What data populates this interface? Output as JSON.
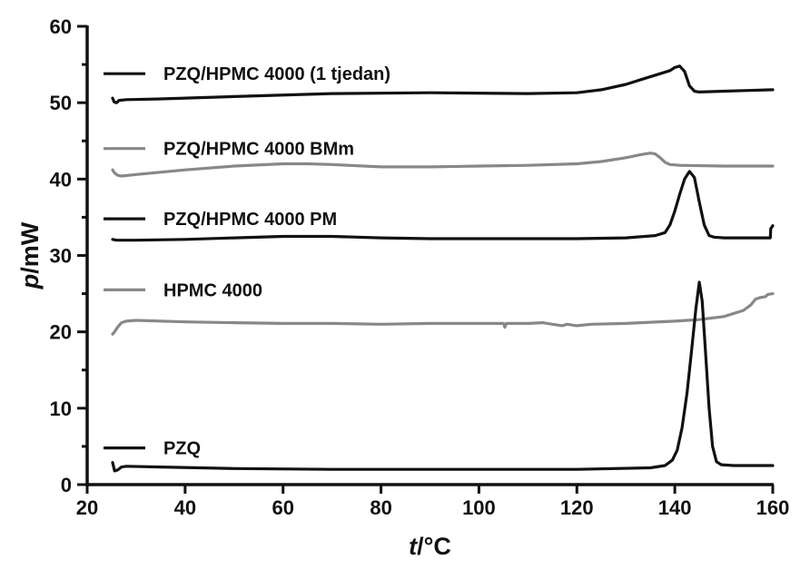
{
  "chart_data": {
    "type": "line",
    "title": "",
    "xlabel": {
      "symbol": "t",
      "unit": "/°C"
    },
    "ylabel": {
      "symbol": "p",
      "unit": "/mW"
    },
    "xlim": [
      20,
      160
    ],
    "ylim": [
      0,
      60
    ],
    "xticks": [
      20,
      40,
      60,
      80,
      100,
      120,
      140,
      160
    ],
    "yticks": [
      0,
      10,
      20,
      30,
      40,
      50,
      60
    ],
    "grid": false,
    "legend": "inline labels, left side",
    "series": [
      {
        "name": "PZQ/HPMC 4000 (1 tjedan)",
        "color": "#111111",
        "legend_y": 53.8,
        "points": [
          [
            25.2,
            50.6
          ],
          [
            25.5,
            50.1
          ],
          [
            26.0,
            50.0
          ],
          [
            26.5,
            50.3
          ],
          [
            28,
            50.4
          ],
          [
            35,
            50.5
          ],
          [
            50,
            50.8
          ],
          [
            70,
            51.2
          ],
          [
            90,
            51.3
          ],
          [
            110,
            51.2
          ],
          [
            120,
            51.3
          ],
          [
            125,
            51.7
          ],
          [
            130,
            52.4
          ],
          [
            134,
            53.2
          ],
          [
            137,
            53.8
          ],
          [
            139,
            54.2
          ],
          [
            140,
            54.6
          ],
          [
            141,
            54.8
          ],
          [
            142,
            54.1
          ],
          [
            143,
            52.2
          ],
          [
            144,
            51.5
          ],
          [
            145,
            51.4
          ],
          [
            150,
            51.5
          ],
          [
            155,
            51.6
          ],
          [
            160,
            51.7
          ]
        ]
      },
      {
        "name": "PZQ/HPMC 4000 BMm",
        "color": "#888888",
        "legend_y": 44.0,
        "points": [
          [
            25.2,
            41.2
          ],
          [
            25.6,
            40.8
          ],
          [
            26.2,
            40.5
          ],
          [
            27,
            40.4
          ],
          [
            30,
            40.6
          ],
          [
            40,
            41.2
          ],
          [
            50,
            41.7
          ],
          [
            60,
            42.0
          ],
          [
            65,
            42.0
          ],
          [
            70,
            41.9
          ],
          [
            80,
            41.6
          ],
          [
            90,
            41.6
          ],
          [
            100,
            41.7
          ],
          [
            110,
            41.8
          ],
          [
            120,
            42.0
          ],
          [
            125,
            42.3
          ],
          [
            130,
            42.8
          ],
          [
            133,
            43.2
          ],
          [
            135,
            43.4
          ],
          [
            136,
            43.3
          ],
          [
            137,
            42.8
          ],
          [
            138,
            42.2
          ],
          [
            139,
            41.9
          ],
          [
            141,
            41.8
          ],
          [
            150,
            41.7
          ],
          [
            160,
            41.7
          ]
        ]
      },
      {
        "name": "PZQ/HPMC 4000 PM",
        "color": "#111111",
        "legend_y": 34.8,
        "points": [
          [
            25.2,
            32.1
          ],
          [
            26,
            32.0
          ],
          [
            30,
            32.0
          ],
          [
            40,
            32.1
          ],
          [
            50,
            32.3
          ],
          [
            60,
            32.5
          ],
          [
            70,
            32.5
          ],
          [
            80,
            32.3
          ],
          [
            90,
            32.2
          ],
          [
            100,
            32.2
          ],
          [
            110,
            32.2
          ],
          [
            120,
            32.2
          ],
          [
            130,
            32.3
          ],
          [
            136,
            32.6
          ],
          [
            138,
            33.0
          ],
          [
            139,
            34.0
          ],
          [
            140,
            35.8
          ],
          [
            141,
            38.0
          ],
          [
            142,
            40.0
          ],
          [
            143,
            41.0
          ],
          [
            144,
            40.2
          ],
          [
            145,
            37.0
          ],
          [
            146,
            34.0
          ],
          [
            147,
            32.6
          ],
          [
            148,
            32.4
          ],
          [
            150,
            32.3
          ],
          [
            159.5,
            32.3
          ],
          [
            159.6,
            33.5
          ],
          [
            160,
            33.9
          ]
        ]
      },
      {
        "name": "HPMC 4000",
        "color": "#888888",
        "legend_y": 25.5,
        "points": [
          [
            25.2,
            19.7
          ],
          [
            25.6,
            20.0
          ],
          [
            26.2,
            20.6
          ],
          [
            27,
            21.2
          ],
          [
            28,
            21.4
          ],
          [
            30,
            21.5
          ],
          [
            40,
            21.3
          ],
          [
            50,
            21.2
          ],
          [
            60,
            21.1
          ],
          [
            70,
            21.1
          ],
          [
            80,
            21.0
          ],
          [
            90,
            21.1
          ],
          [
            100,
            21.1
          ],
          [
            105,
            21.1
          ],
          [
            105.3,
            20.6
          ],
          [
            105.6,
            21.1
          ],
          [
            110,
            21.1
          ],
          [
            113,
            21.2
          ],
          [
            115,
            21.0
          ],
          [
            117,
            20.8
          ],
          [
            118,
            21.0
          ],
          [
            120,
            20.8
          ],
          [
            123,
            21.0
          ],
          [
            130,
            21.1
          ],
          [
            140,
            21.4
          ],
          [
            145,
            21.6
          ],
          [
            150,
            22.0
          ],
          [
            154,
            22.8
          ],
          [
            155.5,
            23.5
          ],
          [
            156.5,
            24.3
          ],
          [
            157.5,
            24.5
          ],
          [
            158.5,
            24.6
          ],
          [
            159,
            24.9
          ],
          [
            160,
            25.0
          ]
        ]
      },
      {
        "name": "PZQ",
        "color": "#111111",
        "legend_y": 4.8,
        "points": [
          [
            25.2,
            2.9
          ],
          [
            25.6,
            1.8
          ],
          [
            26.2,
            1.9
          ],
          [
            27,
            2.3
          ],
          [
            28,
            2.4
          ],
          [
            35,
            2.3
          ],
          [
            50,
            2.1
          ],
          [
            70,
            2.0
          ],
          [
            90,
            2.0
          ],
          [
            110,
            2.0
          ],
          [
            120,
            2.0
          ],
          [
            135,
            2.2
          ],
          [
            138,
            2.5
          ],
          [
            139.5,
            3.2
          ],
          [
            140.5,
            4.5
          ],
          [
            141.5,
            7.5
          ],
          [
            142.5,
            12.0
          ],
          [
            143.5,
            18.0
          ],
          [
            144.3,
            23.0
          ],
          [
            145,
            26.5
          ],
          [
            145.6,
            24.0
          ],
          [
            146.2,
            18.0
          ],
          [
            147,
            10.0
          ],
          [
            147.7,
            5.0
          ],
          [
            148.5,
            3.0
          ],
          [
            149.5,
            2.6
          ],
          [
            152,
            2.5
          ],
          [
            160,
            2.5
          ]
        ]
      }
    ]
  }
}
